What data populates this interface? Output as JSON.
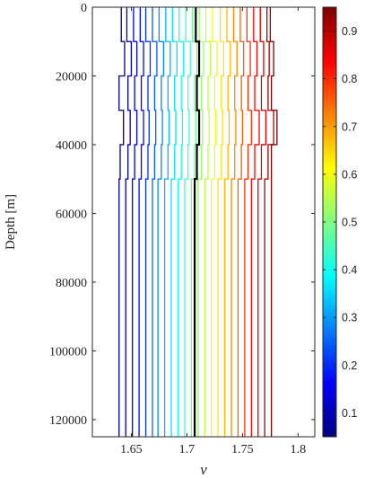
{
  "chart_data": {
    "type": "line",
    "xlabel": "ν",
    "ylabel": "Depth [m]",
    "xlim": [
      1.615,
      1.815
    ],
    "ylim": [
      0,
      125000
    ],
    "y_reversed": true,
    "x_ticks": [
      1.65,
      1.7,
      1.75,
      1.8
    ],
    "x_tick_labels": [
      "1.65",
      "1.7",
      "1.75",
      "1.8"
    ],
    "y_ticks": [
      0,
      20000,
      40000,
      60000,
      80000,
      100000,
      120000
    ],
    "y_tick_labels": [
      "0",
      "20000",
      "40000",
      "60000",
      "80000",
      "100000",
      "120000"
    ],
    "grid": false,
    "colorbar": {
      "colormap": "jet",
      "range": [
        0.05,
        0.95
      ],
      "ticks": [
        0.1,
        0.2,
        0.3,
        0.4,
        0.5,
        0.6,
        0.7,
        0.8,
        0.9
      ],
      "tick_labels": [
        "0.1",
        "0.2",
        "0.3",
        "0.4",
        "0.5",
        "0.6",
        "0.7",
        "0.8",
        "0.9"
      ]
    },
    "highlight_series_color": "#000000",
    "layer_boundaries_depth": [
      0,
      10000,
      20000,
      30000,
      40000,
      50000,
      125000
    ],
    "series": [
      {
        "quantile": 0.05,
        "nu": [
          1.641,
          1.644,
          1.639,
          1.643,
          1.64,
          1.639
        ]
      },
      {
        "quantile": 0.1,
        "nu": [
          1.646,
          1.65,
          1.647,
          1.649,
          1.647,
          1.645
        ]
      },
      {
        "quantile": 0.15,
        "nu": [
          1.652,
          1.655,
          1.653,
          1.655,
          1.653,
          1.651
        ]
      },
      {
        "quantile": 0.2,
        "nu": [
          1.658,
          1.661,
          1.659,
          1.661,
          1.659,
          1.657
        ]
      },
      {
        "quantile": 0.25,
        "nu": [
          1.663,
          1.667,
          1.665,
          1.666,
          1.665,
          1.663
        ]
      },
      {
        "quantile": 0.3,
        "nu": [
          1.669,
          1.673,
          1.671,
          1.672,
          1.671,
          1.669
        ]
      },
      {
        "quantile": 0.35,
        "nu": [
          1.675,
          1.679,
          1.677,
          1.678,
          1.677,
          1.674
        ]
      },
      {
        "quantile": 0.4,
        "nu": [
          1.681,
          1.685,
          1.683,
          1.684,
          1.683,
          1.68
        ]
      },
      {
        "quantile": 0.45,
        "nu": [
          1.687,
          1.691,
          1.689,
          1.69,
          1.689,
          1.686
        ]
      },
      {
        "quantile": 0.5,
        "nu": [
          1.693,
          1.697,
          1.695,
          1.696,
          1.695,
          1.692
        ]
      },
      {
        "quantile": 0.55,
        "nu": [
          1.699,
          1.703,
          1.701,
          1.702,
          1.701,
          1.698
        ]
      },
      {
        "quantile": 0.6,
        "nu": [
          1.705,
          1.709,
          1.707,
          1.708,
          1.707,
          1.704
        ]
      },
      {
        "quantile": 0.65,
        "nu": [
          1.711,
          1.715,
          1.713,
          1.714,
          1.713,
          1.71
        ]
      },
      {
        "quantile": 0.7,
        "nu": [
          1.717,
          1.721,
          1.719,
          1.72,
          1.719,
          1.716
        ]
      },
      {
        "quantile": 0.75,
        "nu": [
          1.723,
          1.727,
          1.725,
          1.726,
          1.725,
          1.722
        ]
      },
      {
        "quantile": 0.8,
        "nu": [
          1.73,
          1.733,
          1.731,
          1.732,
          1.731,
          1.728
        ]
      },
      {
        "quantile": 0.85,
        "nu": [
          1.736,
          1.739,
          1.737,
          1.738,
          1.737,
          1.734
        ]
      },
      {
        "quantile": 0.9,
        "nu": [
          1.742,
          1.745,
          1.743,
          1.744,
          1.743,
          1.74
        ]
      },
      {
        "quantile": 0.95,
        "nu": [
          1.748,
          1.751,
          1.749,
          1.75,
          1.749,
          1.746
        ]
      },
      {
        "quantile": 0.95,
        "nu": [
          1.754,
          1.757,
          1.755,
          1.758,
          1.755,
          1.752
        ]
      },
      {
        "quantile": 0.95,
        "nu": [
          1.76,
          1.763,
          1.761,
          1.765,
          1.761,
          1.758
        ]
      },
      {
        "quantile": 0.95,
        "nu": [
          1.766,
          1.769,
          1.767,
          1.771,
          1.767,
          1.764
        ]
      },
      {
        "quantile": 0.95,
        "nu": [
          1.772,
          1.774,
          1.773,
          1.778,
          1.773,
          1.77
        ]
      },
      {
        "quantile": 0.95,
        "nu": [
          1.775,
          1.778,
          1.776,
          1.781,
          1.776,
          1.776
        ]
      }
    ],
    "highlight_series": {
      "nu": [
        1.708,
        1.711,
        1.709,
        1.711,
        1.709,
        1.707
      ]
    }
  }
}
